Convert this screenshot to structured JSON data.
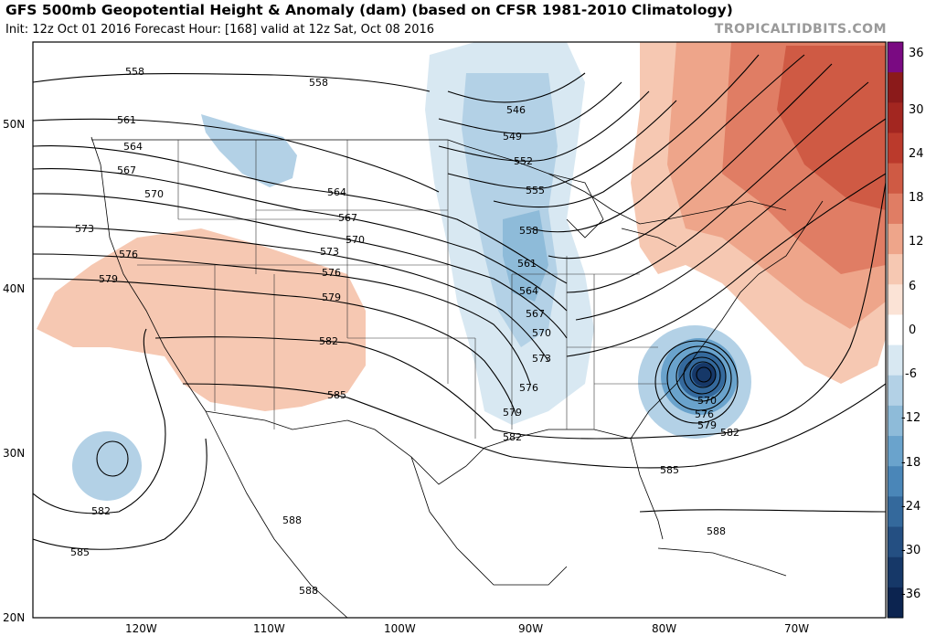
{
  "header": {
    "title": "GFS 500mb Geopotential Height & Anomaly (dam) (based on CFSR 1981-2010 Climatology)",
    "subtitle": "Init: 12z Oct 01 2016   Forecast Hour: [168]   valid at 12z Sat, Oct 08 2016",
    "brand": "TROPICALTIDBITS.COM"
  },
  "map": {
    "lat_labels": [
      "50N",
      "40N",
      "30N",
      "20N"
    ],
    "lon_labels": [
      "120W",
      "110W",
      "100W",
      "90W",
      "80W",
      "70W"
    ],
    "contour_labels": [
      "558",
      "558",
      "561",
      "564",
      "567",
      "570",
      "573",
      "576",
      "579",
      "546",
      "549",
      "552",
      "555",
      "558",
      "561",
      "564",
      "567",
      "570",
      "573",
      "576",
      "579",
      "582",
      "564",
      "567",
      "570",
      "573",
      "576",
      "579",
      "582",
      "585",
      "570",
      "576",
      "579",
      "582",
      "585",
      "582",
      "585",
      "588",
      "588",
      "588"
    ]
  },
  "colorbar": {
    "labels": [
      "36",
      "30",
      "24",
      "18",
      "12",
      "6",
      "0",
      "-6",
      "-12",
      "-18",
      "-24",
      "-30",
      "-36"
    ],
    "colors": [
      "#7a0a82",
      "#8b1a1a",
      "#a32620",
      "#bb3a2c",
      "#cf5a44",
      "#e07d64",
      "#eea58a",
      "#f6c8b2",
      "#fbe3d6",
      "#ffffff",
      "#d8e8f2",
      "#b3d1e6",
      "#8ebbd9",
      "#6aa3cc",
      "#4a86b8",
      "#34699c",
      "#244f82",
      "#163868",
      "#0c2450"
    ]
  }
}
